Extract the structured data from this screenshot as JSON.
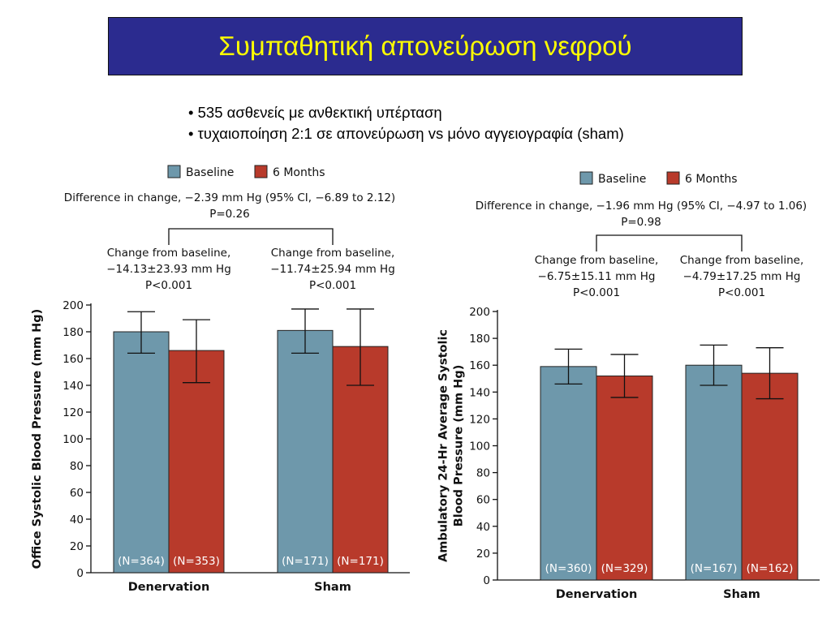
{
  "slide": {
    "title": "Συμπαθητική απονεύρωση νεφρού",
    "bullets": [
      "• 535 ασθενείς με ανθεκτική υπέρταση",
      "• τυχαιοποίηση 2:1 σε απονεύρωση vs μόνο αγγειογραφία (sham)"
    ]
  },
  "colors": {
    "baseline": "#6e98ab",
    "six_months": "#b83a2b",
    "title_bg": "#2b2b8f",
    "title_text": "#ffff00"
  },
  "chart_data": [
    {
      "type": "bar",
      "ylabel": "Office Systolic Blood Pressure (mm Hg)",
      "ylabel_lines": [
        "Office Systolic Blood Pressure (mm Hg)"
      ],
      "ylim": [
        0,
        200
      ],
      "yticks": [
        0,
        20,
        40,
        60,
        80,
        100,
        120,
        140,
        160,
        180,
        200
      ],
      "categories": [
        "Denervation",
        "Sham"
      ],
      "legend": [
        "Baseline",
        "6 Months"
      ],
      "series": [
        {
          "name": "Baseline",
          "values": [
            180,
            181
          ],
          "error_low": [
            164,
            164
          ],
          "error_high": [
            195,
            197
          ],
          "n_labels": [
            "(N=364)",
            "(N=171)"
          ]
        },
        {
          "name": "6 Months",
          "values": [
            166,
            169
          ],
          "error_low": [
            142,
            140
          ],
          "error_high": [
            189,
            197
          ],
          "n_labels": [
            "(N=353)",
            "(N=171)"
          ]
        }
      ],
      "difference_text": "Difference in change, −2.39  mm Hg (95% CI, −6.89 to 2.12)",
      "difference_p": "P=0.26",
      "group_annotations": [
        {
          "line1": "Change from baseline,",
          "line2": "−14.13±23.93 mm Hg",
          "line3": "P<0.001"
        },
        {
          "line1": "Change from baseline,",
          "line2": "−11.74±25.94 mm Hg",
          "line3": "P<0.001"
        }
      ]
    },
    {
      "type": "bar",
      "ylabel": "Ambulatory 24-Hr Average Systolic Blood Pressure (mm Hg)",
      "ylabel_lines": [
        "Ambulatory 24-Hr Average Systolic",
        "Blood Pressure (mm Hg)"
      ],
      "ylim": [
        0,
        200
      ],
      "yticks": [
        0,
        20,
        40,
        60,
        80,
        100,
        120,
        140,
        160,
        180,
        200
      ],
      "categories": [
        "Denervation",
        "Sham"
      ],
      "legend": [
        "Baseline",
        "6 Months"
      ],
      "series": [
        {
          "name": "Baseline",
          "values": [
            159,
            160
          ],
          "error_low": [
            146,
            145
          ],
          "error_high": [
            172,
            175
          ],
          "n_labels": [
            "(N=360)",
            "(N=167)"
          ]
        },
        {
          "name": "6 Months",
          "values": [
            152,
            154
          ],
          "error_low": [
            136,
            135
          ],
          "error_high": [
            168,
            173
          ],
          "n_labels": [
            "(N=329)",
            "(N=162)"
          ]
        }
      ],
      "difference_text": "Difference in change, −1.96 mm Hg (95% CI, −4.97 to 1.06)",
      "difference_p": "P=0.98",
      "group_annotations": [
        {
          "line1": "Change from baseline,",
          "line2": "−6.75±15.11 mm Hg",
          "line3": "P<0.001"
        },
        {
          "line1": "Change from baseline,",
          "line2": "−4.79±17.25 mm Hg",
          "line3": "P<0.001"
        }
      ]
    }
  ]
}
